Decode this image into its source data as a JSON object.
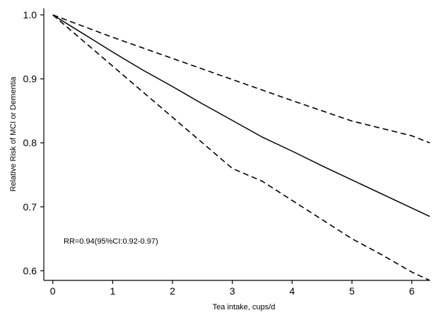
{
  "chart_data": {
    "type": "line",
    "title": "",
    "xlabel": "Tea intake, cups/d",
    "ylabel": "Relative Risk of MCI or Dementia",
    "xlim": [
      -0.15,
      6.3
    ],
    "ylim": [
      0.585,
      1.01
    ],
    "x_ticks": [
      0,
      1,
      2,
      3,
      4,
      5,
      6
    ],
    "x_tick_labels": [
      "0",
      "1",
      "2",
      "3",
      "4",
      "5",
      "6"
    ],
    "y_ticks": [
      0.6,
      0.7,
      0.8,
      0.9,
      1.0
    ],
    "y_tick_labels": [
      "0.6",
      "0.7",
      "0.8",
      "0.9",
      "1.0"
    ],
    "grid": false,
    "legend": "none",
    "annotation": "RR=0.94(95%CI:0.92-0.97)",
    "series": [
      {
        "role": "estimate",
        "style": "solid",
        "x": [
          0,
          0.5,
          1,
          1.5,
          2,
          2.5,
          3,
          3.5,
          4,
          4.5,
          5,
          5.5,
          6,
          6.3
        ],
        "y": [
          1.0,
          0.971,
          0.942,
          0.914,
          0.888,
          0.861,
          0.835,
          0.809,
          0.787,
          0.764,
          0.742,
          0.72,
          0.698,
          0.685
        ]
      },
      {
        "role": "upper-ci",
        "style": "dashed",
        "x": [
          0,
          1,
          2,
          3,
          4,
          5,
          6,
          6.3
        ],
        "y": [
          1.0,
          0.965,
          0.932,
          0.899,
          0.866,
          0.834,
          0.811,
          0.8
        ]
      },
      {
        "role": "lower-ci",
        "style": "dashed",
        "x": [
          0,
          0.5,
          1,
          1.5,
          2,
          2.5,
          3,
          3.5,
          4,
          4.5,
          5,
          5.5,
          6,
          6.3
        ],
        "y": [
          1.0,
          0.96,
          0.92,
          0.88,
          0.84,
          0.8,
          0.76,
          0.74,
          0.71,
          0.68,
          0.65,
          0.625,
          0.598,
          0.585
        ]
      }
    ],
    "colors": {
      "line": "#000000",
      "axis": "#000000",
      "background": "#ffffff"
    }
  }
}
